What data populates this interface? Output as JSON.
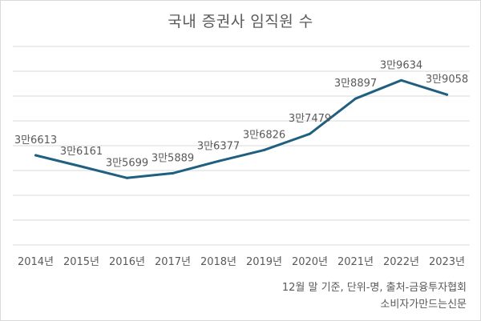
{
  "chart_data": {
    "type": "line",
    "title": "국내 증권사 임직원 수",
    "categories": [
      "2014년",
      "2015년",
      "2016년",
      "2017년",
      "2018년",
      "2019년",
      "2020년",
      "2021년",
      "2022년",
      "2023년"
    ],
    "values": [
      36613,
      36161,
      35699,
      35889,
      36377,
      36826,
      37479,
      38897,
      39634,
      39058
    ],
    "data_labels": [
      "3만6613",
      "3만6161",
      "3만5699",
      "3만5889",
      "3만6377",
      "3만6826",
      "3만7479",
      "3만8897",
      "3만9634",
      "3만9058"
    ],
    "xlabel": "",
    "ylabel": "",
    "ylim": [
      33000,
      41000
    ],
    "grid": true,
    "line_color": "#1f5f7f",
    "grid_color": "#d9d9d9"
  },
  "notes": {
    "line1": "12월 말 기준, 단위-명, 출처-금융투자협회",
    "line2": "소비자가만드는신문"
  }
}
